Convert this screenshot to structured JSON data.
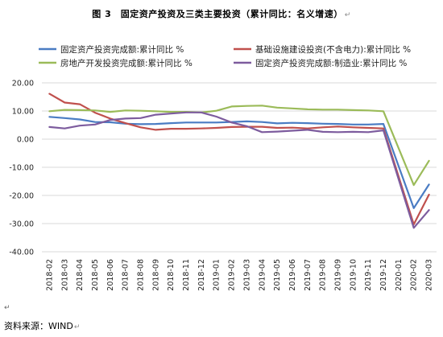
{
  "figure": {
    "title": "图 3　固定资产投资及三类主要投资（累计同比：名义增速）",
    "return_mark": "↵"
  },
  "source": {
    "text": "资料来源：WIND",
    "return_mark": "↵",
    "leading_mark": "↵"
  },
  "chart_data": {
    "type": "line",
    "title": "",
    "xlabel": "",
    "ylabel": "",
    "ylim": [
      -40,
      20
    ],
    "yticks": [
      -40,
      -30,
      -20,
      -10,
      0,
      10,
      20
    ],
    "ytick_labels": [
      "-40.00",
      "-30.00",
      "-20.00",
      "-10.00",
      "0.00",
      "10.00",
      "20.00"
    ],
    "grid": "horizontal",
    "legend_position": "top",
    "categories": [
      "2018-02",
      "2018-03",
      "2018-04",
      "2018-05",
      "2018-06",
      "2018-07",
      "2018-08",
      "2018-09",
      "2018-10",
      "2018-11",
      "2018-12",
      "2019-01",
      "2019-02",
      "2019-03",
      "2019-04",
      "2019-05",
      "2019-06",
      "2019-07",
      "2019-08",
      "2019-09",
      "2019-10",
      "2019-11",
      "2019-12",
      "2020-01",
      "2020-02",
      "2020-03"
    ],
    "series": [
      {
        "name": "固定资产投资完成额:累计同比 %",
        "color": "#4a7cc3",
        "values": [
          7.9,
          7.5,
          7.0,
          6.1,
          6.0,
          5.5,
          5.3,
          5.4,
          5.7,
          5.9,
          5.9,
          5.9,
          6.1,
          6.3,
          6.1,
          5.6,
          5.8,
          5.7,
          5.5,
          5.4,
          5.2,
          5.2,
          5.4,
          null,
          -24.5,
          -16.1
        ]
      },
      {
        "name": "基础设施建设投资(不含电力):累计同比 %",
        "color": "#c0504d",
        "values": [
          16.1,
          13.0,
          12.4,
          9.4,
          7.3,
          5.7,
          4.2,
          3.3,
          3.7,
          3.7,
          3.8,
          4.0,
          4.3,
          4.4,
          4.4,
          4.0,
          4.1,
          3.8,
          4.2,
          4.5,
          4.2,
          4.0,
          3.8,
          null,
          -30.3,
          -19.7
        ]
      },
      {
        "name": "房地产开发投资完成额:累计同比 %",
        "color": "#9bbb59",
        "values": [
          9.9,
          10.4,
          10.3,
          10.2,
          9.7,
          10.2,
          10.1,
          9.9,
          9.7,
          9.7,
          9.5,
          10.1,
          11.6,
          11.8,
          11.9,
          11.2,
          10.9,
          10.6,
          10.5,
          10.5,
          10.3,
          10.2,
          9.9,
          null,
          -16.3,
          -7.7
        ]
      },
      {
        "name": "固定资产投资完成额:制造业:累计同比 %",
        "color": "#7d5c9e",
        "values": [
          4.3,
          3.8,
          4.8,
          5.2,
          6.8,
          7.3,
          7.5,
          8.7,
          9.1,
          9.5,
          9.5,
          8.0,
          5.9,
          4.6,
          2.5,
          2.7,
          3.0,
          3.3,
          2.6,
          2.5,
          2.6,
          2.5,
          3.1,
          null,
          -31.5,
          -25.2
        ]
      }
    ]
  }
}
